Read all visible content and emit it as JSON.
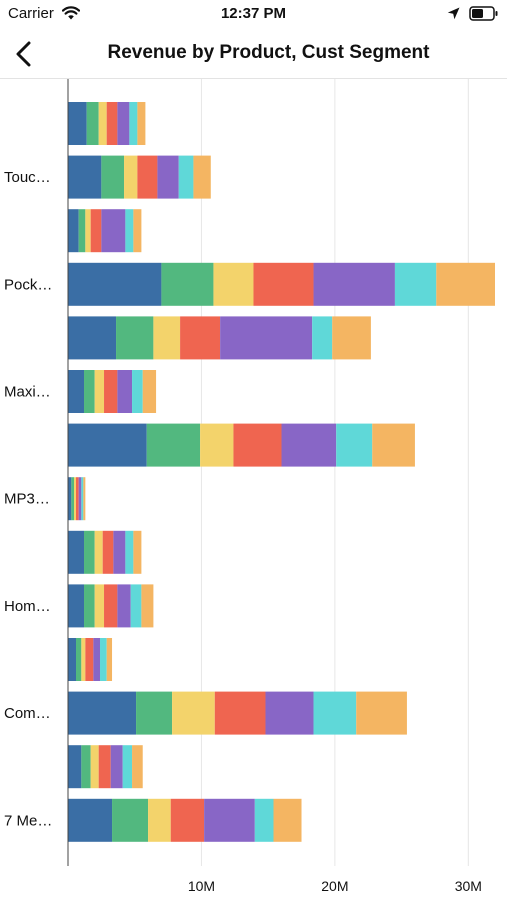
{
  "status_bar": {
    "carrier": "Carrier",
    "time": "12:37 PM",
    "icons": [
      "wifi-icon",
      "location-arrow-icon",
      "battery-icon"
    ]
  },
  "nav": {
    "back_icon": "chevron-left-icon",
    "title": "Revenue by Product, Cust Segment"
  },
  "chart_data": {
    "type": "bar",
    "orientation": "horizontal",
    "stacked": true,
    "categories": [
      "Touc…",
      "Pock…",
      "Maxi…",
      "MP3…",
      "Hom…",
      "Com…",
      "7 Me…"
    ],
    "xlim": [
      0,
      32
    ],
    "xticks": [
      {
        "value": 10,
        "label": "10M"
      },
      {
        "value": 20,
        "label": "20M"
      },
      {
        "value": 30,
        "label": "30M"
      }
    ],
    "grid": true,
    "legend": "none",
    "colors": [
      "#3a6ea5",
      "#52b87f",
      "#f3d36b",
      "#ef6550",
      "#8866c6",
      "#5fd8d8",
      "#f4b562"
    ],
    "bars": [
      {
        "label": "",
        "values": [
          1.4,
          0.9,
          0.6,
          0.8,
          0.9,
          0.6,
          0.6
        ]
      },
      {
        "label": "Touc…",
        "values": [
          2.5,
          1.7,
          1.0,
          1.5,
          1.6,
          1.1,
          1.3
        ]
      },
      {
        "label": "",
        "values": [
          0.8,
          0.5,
          0.4,
          0.8,
          1.8,
          0.6,
          0.6
        ]
      },
      {
        "label": "Pock…",
        "values": [
          7.0,
          3.9,
          3.0,
          4.5,
          6.1,
          3.1,
          4.4
        ]
      },
      {
        "label": "",
        "values": [
          3.6,
          2.8,
          2.0,
          3.0,
          6.9,
          1.5,
          2.9
        ]
      },
      {
        "label": "Maxi…",
        "values": [
          1.2,
          0.8,
          0.7,
          1.0,
          1.1,
          0.8,
          1.0
        ]
      },
      {
        "label": "",
        "values": [
          5.9,
          4.0,
          2.5,
          3.6,
          4.1,
          2.7,
          3.2
        ]
      },
      {
        "label": "MP3…",
        "values": [
          0.25,
          0.2,
          0.15,
          0.2,
          0.2,
          0.15,
          0.15
        ]
      },
      {
        "label": "",
        "values": [
          1.2,
          0.8,
          0.6,
          0.8,
          0.9,
          0.6,
          0.6
        ]
      },
      {
        "label": "Hom…",
        "values": [
          1.2,
          0.8,
          0.7,
          1.0,
          1.0,
          0.8,
          0.9
        ]
      },
      {
        "label": "",
        "values": [
          0.6,
          0.4,
          0.3,
          0.6,
          0.5,
          0.5,
          0.4
        ]
      },
      {
        "label": "Com…",
        "values": [
          5.1,
          2.7,
          3.2,
          3.8,
          3.6,
          3.2,
          3.8
        ]
      },
      {
        "label": "",
        "values": [
          1.0,
          0.7,
          0.6,
          0.9,
          0.9,
          0.7,
          0.8
        ]
      },
      {
        "label": "7 Me…",
        "values": [
          3.3,
          2.7,
          1.7,
          2.5,
          3.8,
          1.4,
          2.1
        ]
      }
    ]
  }
}
